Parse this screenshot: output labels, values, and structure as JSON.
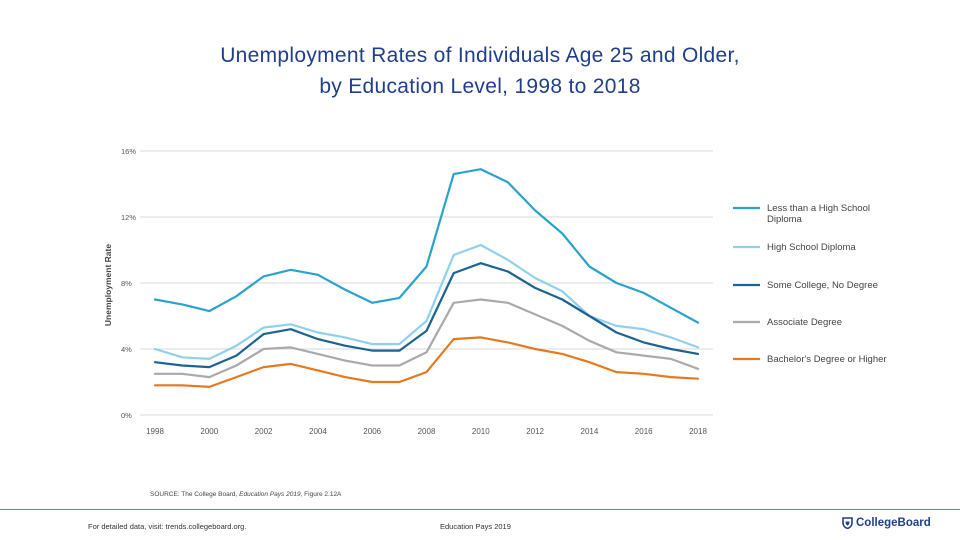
{
  "title": {
    "line1": "Unemployment Rates of Individuals Age 25 and Older,",
    "line2": "by Education Level, 1998 to 2018"
  },
  "chart_data": {
    "type": "line",
    "title": "Unemployment Rates of Individuals Age 25 and Older, by Education Level, 1998 to 2018",
    "xlabel": "",
    "ylabel": "Unemployment Rate",
    "x": [
      1998,
      1999,
      2000,
      2001,
      2002,
      2003,
      2004,
      2005,
      2006,
      2007,
      2008,
      2009,
      2010,
      2011,
      2012,
      2013,
      2014,
      2015,
      2016,
      2017,
      2018
    ],
    "xticks": [
      "1998",
      "2000",
      "2002",
      "2004",
      "2006",
      "2008",
      "2010",
      "2012",
      "2014",
      "2016",
      "2018"
    ],
    "xtick_values": [
      1998,
      2000,
      2002,
      2004,
      2006,
      2008,
      2010,
      2012,
      2014,
      2016,
      2018
    ],
    "yticks": [
      "0%",
      "4%",
      "8%",
      "12%",
      "16%"
    ],
    "ytick_values": [
      0,
      4,
      8,
      12,
      16
    ],
    "ylim": [
      0,
      16
    ],
    "xlim": [
      1998,
      2018
    ],
    "grid": true,
    "legend_position": "right",
    "series": [
      {
        "name": "Less than a High School Diploma",
        "legend_lines": [
          "Less than a High School",
          "Diploma"
        ],
        "color": "#29a3cc",
        "values": [
          7.0,
          6.7,
          6.3,
          7.2,
          8.4,
          8.8,
          8.5,
          7.6,
          6.8,
          7.1,
          9.0,
          14.6,
          14.9,
          14.1,
          12.4,
          11.0,
          9.0,
          8.0,
          7.4,
          6.5,
          5.6
        ]
      },
      {
        "name": "High School Diploma",
        "legend_lines": [
          "High School Diploma"
        ],
        "color": "#8fd0ea",
        "values": [
          4.0,
          3.5,
          3.4,
          4.2,
          5.3,
          5.5,
          5.0,
          4.7,
          4.3,
          4.3,
          5.7,
          9.7,
          10.3,
          9.4,
          8.3,
          7.5,
          6.0,
          5.4,
          5.2,
          4.7,
          4.1
        ]
      },
      {
        "name": "Some College, No Degree",
        "legend_lines": [
          "Some College, No Degree"
        ],
        "color": "#1b6390",
        "values": [
          3.2,
          3.0,
          2.9,
          3.6,
          4.9,
          5.2,
          4.6,
          4.2,
          3.9,
          3.9,
          5.1,
          8.6,
          9.2,
          8.7,
          7.7,
          7.0,
          6.0,
          5.0,
          4.4,
          4.0,
          3.7
        ]
      },
      {
        "name": "Associate Degree",
        "legend_lines": [
          "Associate Degree"
        ],
        "color": "#aaaaaa",
        "values": [
          2.5,
          2.5,
          2.3,
          3.0,
          4.0,
          4.1,
          3.7,
          3.3,
          3.0,
          3.0,
          3.8,
          6.8,
          7.0,
          6.8,
          6.1,
          5.4,
          4.5,
          3.8,
          3.6,
          3.4,
          2.8
        ]
      },
      {
        "name": "Bachelor's Degree or Higher",
        "legend_lines": [
          "Bachelor's Degree or Higher"
        ],
        "color": "#e5791f",
        "values": [
          1.8,
          1.8,
          1.7,
          2.3,
          2.9,
          3.1,
          2.7,
          2.3,
          2.0,
          2.0,
          2.6,
          4.6,
          4.7,
          4.4,
          4.0,
          3.7,
          3.2,
          2.6,
          2.5,
          2.3,
          2.2
        ]
      }
    ]
  },
  "source": {
    "prefix": "SOURCE: The College Board, ",
    "publication": "Education Pays 2019",
    "suffix": ", Figure 2.12A"
  },
  "footer": {
    "left": "For detailed data, visit: trends.collegeboard.org.",
    "center": "Education Pays 2019",
    "brand": "CollegeBoard"
  },
  "colors": {
    "title": "#1f3f8c",
    "grid": "#d9d9d9",
    "axis_text": "#555555",
    "footer_rule": "#6a7dbf"
  }
}
